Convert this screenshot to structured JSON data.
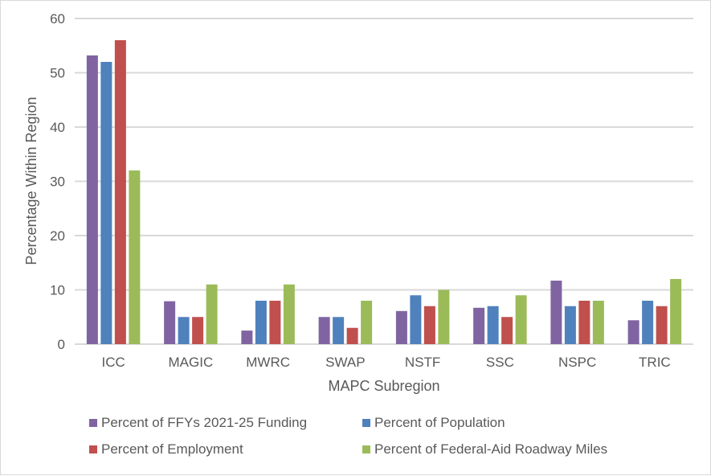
{
  "chart_data": {
    "type": "bar",
    "title": "",
    "xlabel": "MAPC Subregion",
    "ylabel": "Percentage Within Region",
    "ylim": [
      0,
      60
    ],
    "yticks": [
      0,
      10,
      20,
      30,
      40,
      50,
      60
    ],
    "grid": true,
    "legend_placement": "bottom",
    "categories": [
      "ICC",
      "MAGIC",
      "MWRC",
      "SWAP",
      "NSTF",
      "SSC",
      "NSPC",
      "TRIC"
    ],
    "series": [
      {
        "name": "Percent of FFYs 2021-25 Funding",
        "color": "#8064A2",
        "values": [
          53.2,
          7.9,
          2.5,
          5,
          6.1,
          6.7,
          11.7,
          4.4
        ]
      },
      {
        "name": "Percent of Population",
        "color": "#4F81BD",
        "values": [
          52,
          5,
          8,
          5,
          9,
          7,
          7,
          8
        ]
      },
      {
        "name": "Percent of Employment",
        "color": "#C0504D",
        "values": [
          56,
          5,
          8,
          3,
          7,
          5,
          8,
          7
        ]
      },
      {
        "name": "Percent of Federal-Aid Roadway Miles",
        "color": "#9BBB59",
        "values": [
          32,
          11,
          11,
          8,
          10,
          9,
          8,
          12
        ]
      }
    ]
  }
}
